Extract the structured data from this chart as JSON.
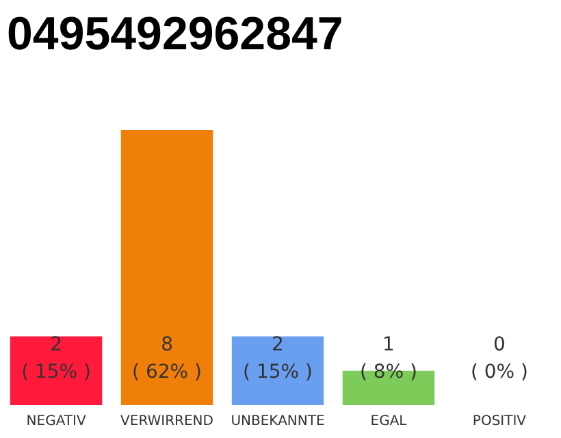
{
  "chart_data": {
    "type": "bar",
    "title": "0495492962847",
    "categories": [
      "NEGATIV",
      "VERWIRREND",
      "UNBEKANNTE",
      "EGAL",
      "POSITIV"
    ],
    "values": [
      2,
      8,
      2,
      1,
      0
    ],
    "colors": [
      "#ff1a3c",
      "#f07f0a",
      "#6a9ff0",
      "#7dcc5a",
      "#cccccc"
    ],
    "value_labels": [
      "2\n( 15% )",
      "8\n( 62% )",
      "2\n( 15% )",
      "1\n( 8% )",
      "0\n( 0% )"
    ],
    "grid": false
  }
}
